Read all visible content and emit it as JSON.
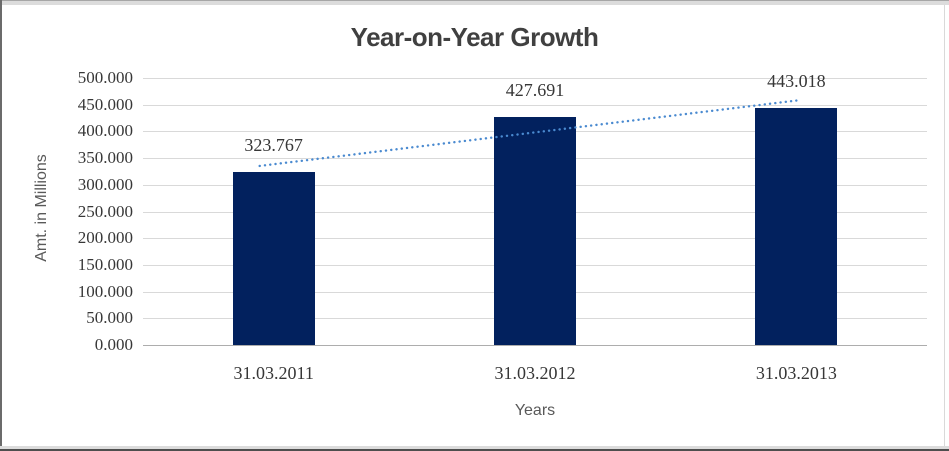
{
  "chart_data": {
    "type": "bar",
    "title": "Year-on-Year Growth",
    "categories": [
      "31.03.2011",
      "31.03.2012",
      "31.03.2013"
    ],
    "values": [
      323.767,
      427.691,
      443.018
    ],
    "value_labels": [
      "323.767",
      "427.691",
      "443.018"
    ],
    "xlabel": "Years",
    "ylabel": "Amt. in Millions",
    "ylim": [
      0,
      500
    ],
    "ytick_step": 50,
    "ytick_labels_top_down": [
      "500.000",
      "450.000",
      "400.000",
      "350.000",
      "300.000",
      "250.000",
      "200.000",
      "150.000",
      "100.000",
      "50.000",
      "0.000"
    ],
    "grid": true,
    "legend": "none",
    "trendline": {
      "type": "linear",
      "style": "dotted"
    },
    "colors": {
      "bar": "#02215e",
      "trendline": "#4a8ad0",
      "gridline": "#d9d9d9",
      "axis_line": "#adadad",
      "title_text": "#404040",
      "tick_text": "#373737",
      "axis_title_text": "#595959"
    }
  }
}
